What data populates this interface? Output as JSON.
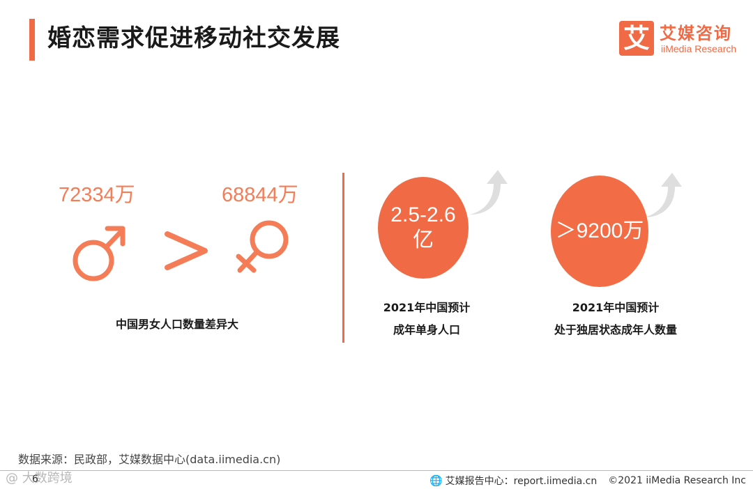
{
  "header": {
    "title": "婚恋需求促进移动社交发展",
    "logo_mark": "艾",
    "logo_cn": "艾媒咨询",
    "logo_en": "iiMedia Research",
    "accent_color": "#ef6a45"
  },
  "comparison": {
    "male_value": "72334万",
    "female_value": "68844万",
    "male_icon": "male-symbol-icon",
    "greater_icon": "greater-than-icon",
    "female_icon": "female-symbol-icon",
    "caption": "中国男女人口数量差异大"
  },
  "stats": [
    {
      "bubble_line1": "2.5-2.6",
      "bubble_line2": "亿",
      "caption_line1": "2021年中国预计",
      "caption_line2": "成年单身人口"
    },
    {
      "bubble_line1": "＞9200万",
      "caption_line1": "2021年中国预计",
      "caption_line2": "处于独居状态成年人数量"
    }
  ],
  "footer": {
    "source": "数据来源：民政部，艾媒数据中心(data.iimedia.cn)",
    "page_number": "6",
    "watermark": "@ 大数跨境",
    "report_center": "艾媒报告中心：report.iimedia.cn",
    "copyright": "©2021  iiMedia Research  Inc"
  }
}
